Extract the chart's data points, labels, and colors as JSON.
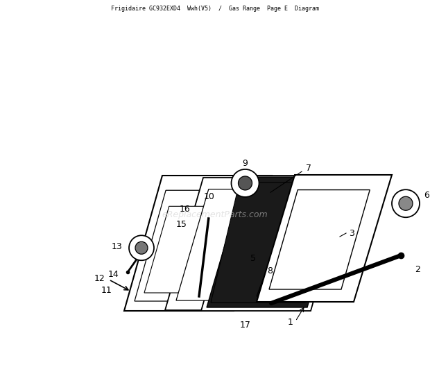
{
  "title_partial": "Frigidaire GC932EXD4  Wwh(V5)  /  Gas Range  Page E  Diagram",
  "bg_color": "#ffffff",
  "watermark": "eReplacementParts.com"
}
